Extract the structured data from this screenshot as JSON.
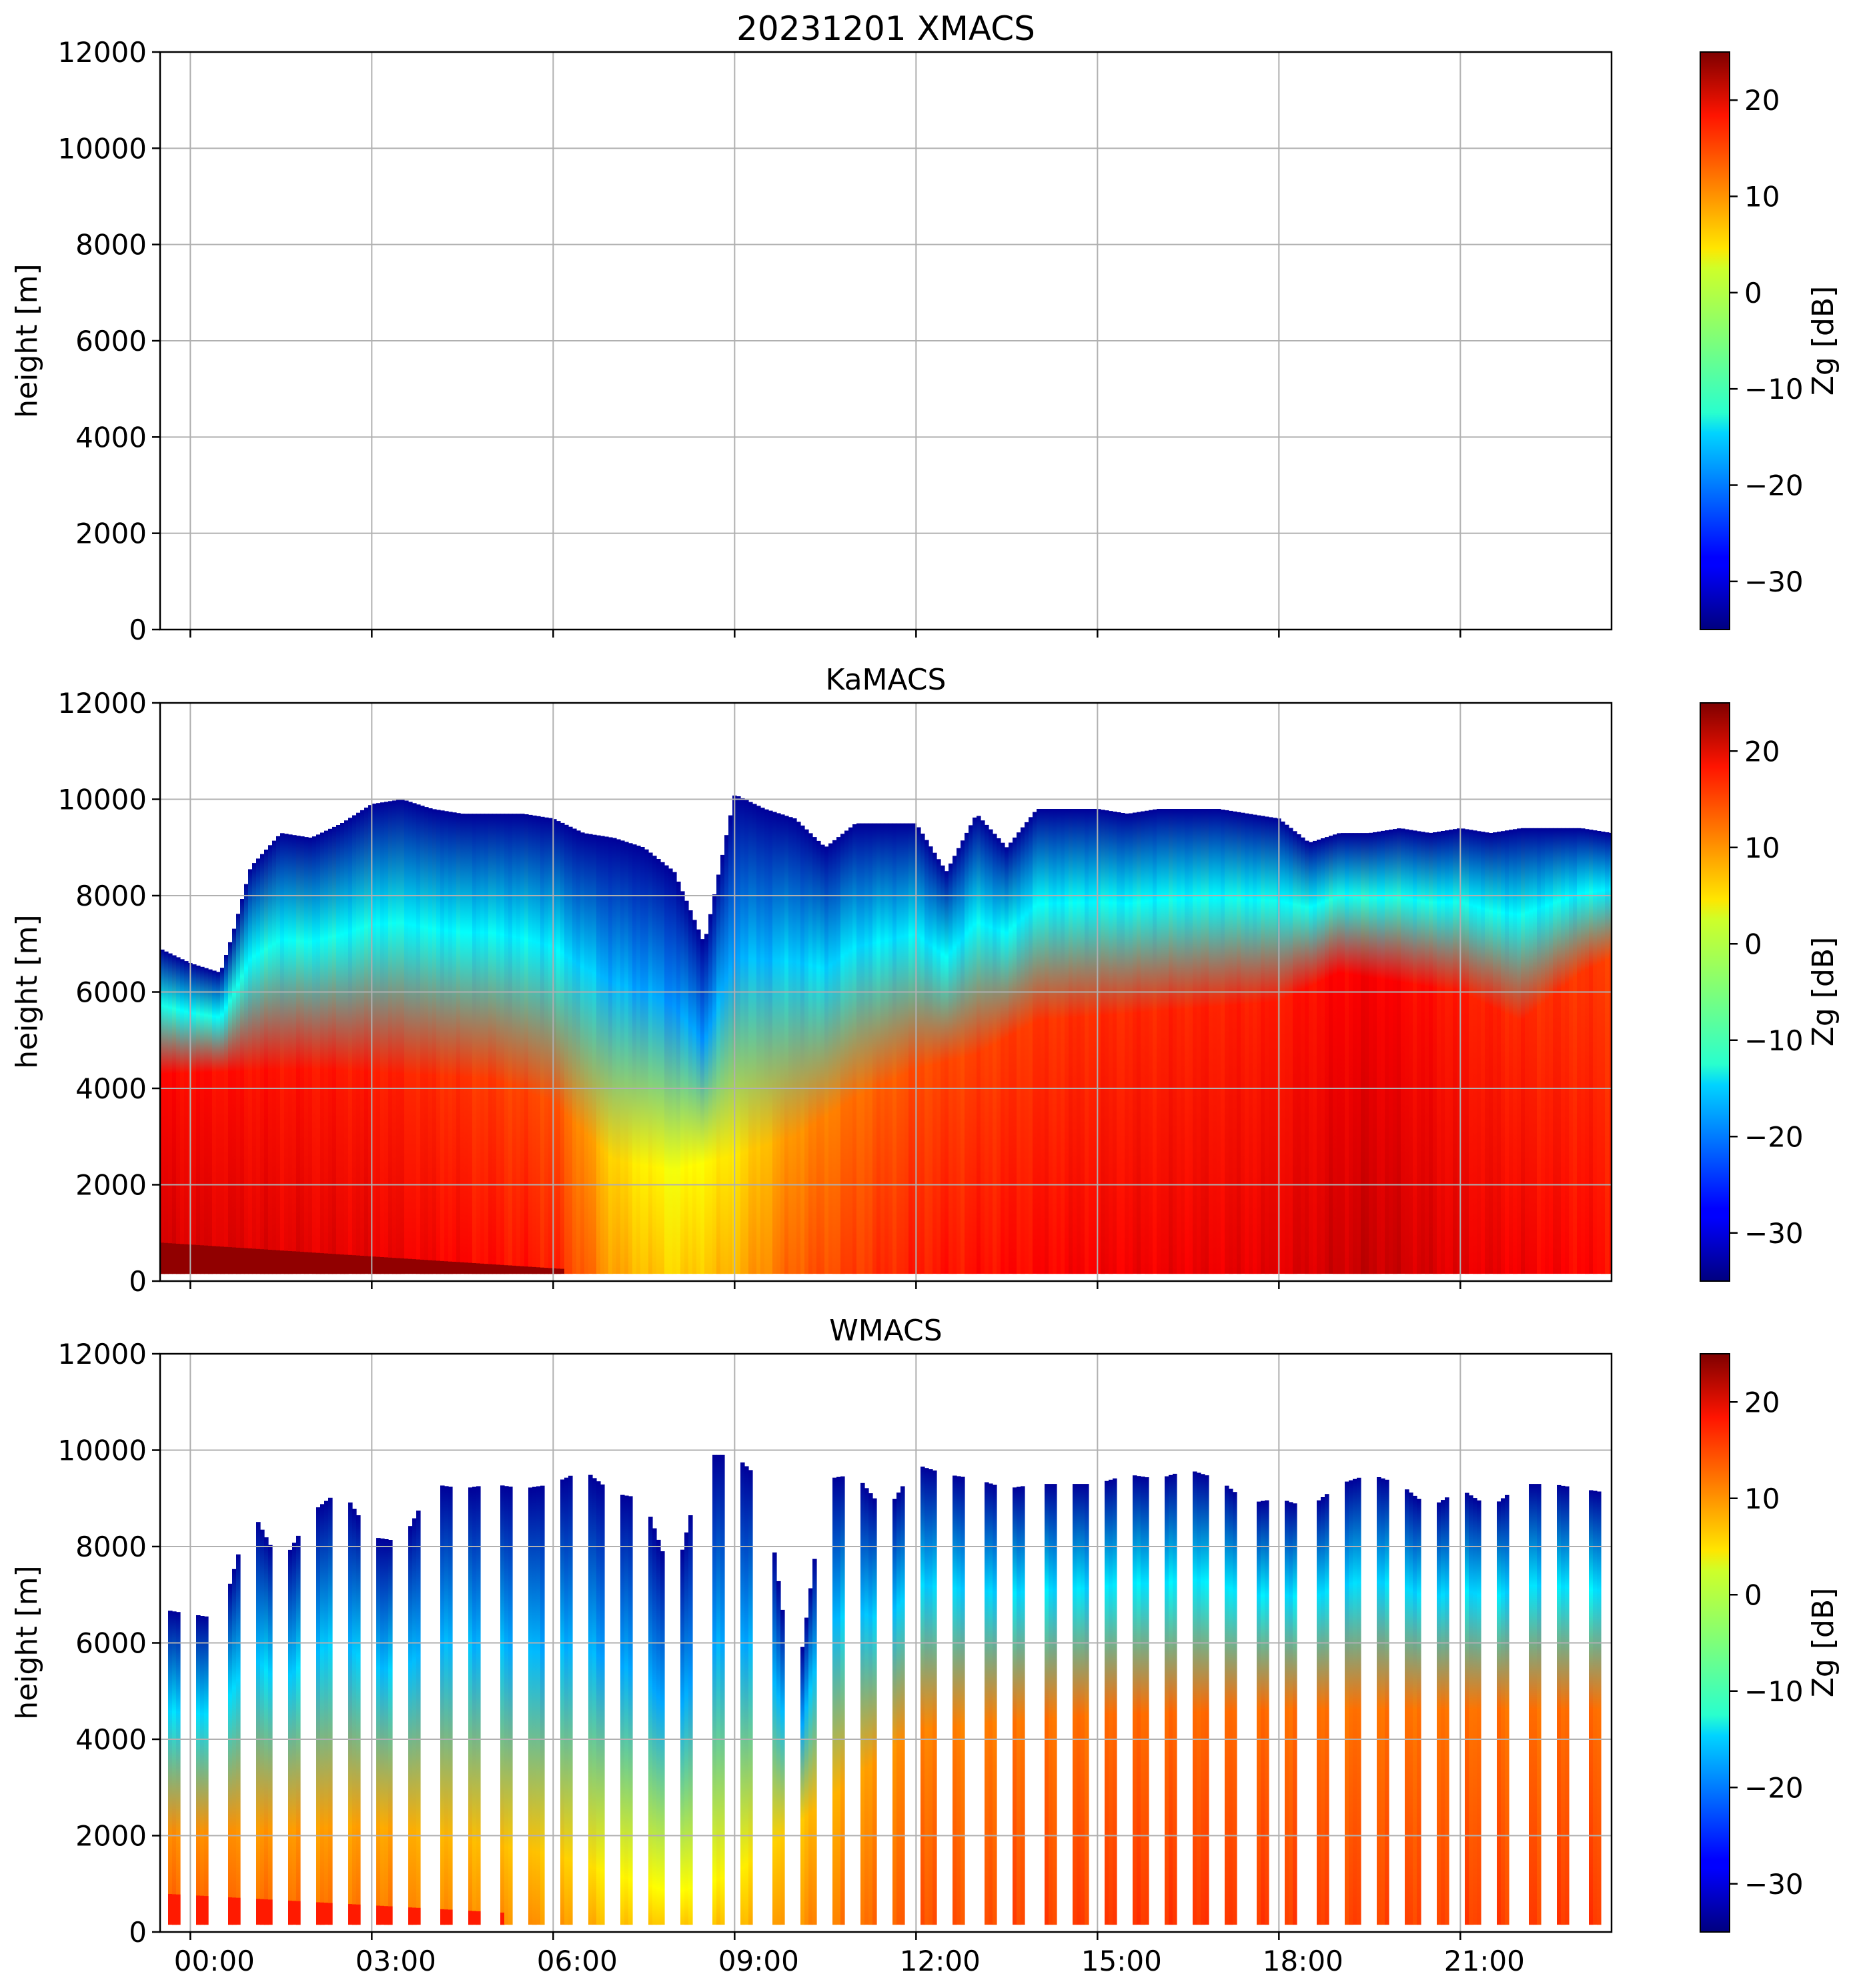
{
  "figure": {
    "date": "20231201",
    "units_note": "Zg [dB]"
  },
  "chart_data": [
    {
      "type": "heatmap",
      "title": "20231201 XMACS",
      "xlabel": "",
      "ylabel": "height [m]",
      "x_range_hours": [
        -0.5,
        23.5
      ],
      "ylim": [
        0,
        12000
      ],
      "yticks": [
        0,
        2000,
        4000,
        6000,
        8000,
        10000,
        12000
      ],
      "xticks": [
        "00:00",
        "03:00",
        "06:00",
        "09:00",
        "12:00",
        "15:00",
        "18:00",
        "21:00"
      ],
      "xtick_labels_shown": false,
      "grid": true,
      "colorbar": {
        "label": "Zg [dB]",
        "range": [
          -35,
          25
        ],
        "ticks": [
          20,
          10,
          0,
          -10,
          -20,
          -30
        ],
        "colormap": "jet"
      },
      "data_present": false,
      "cloud": null
    },
    {
      "type": "heatmap",
      "title": "KaMACS",
      "xlabel": "",
      "ylabel": "height [m]",
      "x_range_hours": [
        -0.5,
        23.5
      ],
      "ylim": [
        0,
        12000
      ],
      "yticks": [
        0,
        2000,
        4000,
        6000,
        8000,
        10000,
        12000
      ],
      "xticks": [
        "00:00",
        "03:00",
        "06:00",
        "09:00",
        "12:00",
        "15:00",
        "18:00",
        "21:00"
      ],
      "xtick_labels_shown": false,
      "grid": true,
      "colorbar": {
        "label": "Zg [dB]",
        "range": [
          -35,
          25
        ],
        "ticks": [
          20,
          10,
          0,
          -10,
          -20,
          -30
        ],
        "colormap": "jet"
      },
      "data_present": true,
      "cloud": {
        "mode": "continuous",
        "base_m": 150,
        "top_profile": {
          "hours": [
            -0.5,
            0,
            0.5,
            0.7,
            1,
            1.5,
            2,
            2.5,
            3,
            3.5,
            4,
            4.5,
            5,
            5.5,
            6,
            6.5,
            7,
            7.5,
            8,
            8.5,
            9,
            9.5,
            10,
            10.5,
            11,
            11.5,
            12,
            12.5,
            13,
            13.5,
            14,
            14.5,
            15,
            15.5,
            16,
            16.5,
            17,
            17.5,
            18,
            18.5,
            19,
            19.5,
            20,
            20.5,
            21,
            21.5,
            22,
            22.5,
            23,
            23.5
          ],
          "top_m": [
            6900,
            6600,
            6400,
            7200,
            8600,
            9300,
            9200,
            9500,
            9900,
            10000,
            9800,
            9700,
            9700,
            9700,
            9600,
            9300,
            9200,
            9000,
            8500,
            7000,
            10100,
            9800,
            9600,
            9000,
            9500,
            9500,
            9500,
            8500,
            9700,
            9000,
            9800,
            9800,
            9800,
            9700,
            9800,
            9800,
            9800,
            9700,
            9600,
            9100,
            9300,
            9300,
            9400,
            9300,
            9400,
            9300,
            9400,
            9400,
            9400,
            9300
          ]
        },
        "core_top_profile": {
          "hours": [
            -0.5,
            2,
            5,
            6,
            7,
            8,
            9,
            10,
            11,
            12,
            13,
            14,
            15,
            16,
            17,
            18,
            19,
            20,
            21,
            22,
            23,
            23.5
          ],
          "top_m": [
            4300,
            4400,
            4200,
            3700,
            2500,
            2300,
            2600,
            3000,
            3800,
            4400,
            4700,
            5400,
            5500,
            5600,
            5700,
            5800,
            6400,
            6200,
            6000,
            5400,
            6400,
            6700
          ]
        },
        "max_dbz_profile": {
          "hours": [
            -0.5,
            3,
            6,
            7,
            8,
            9,
            10,
            12,
            15,
            18,
            19.5,
            21,
            23.5
          ],
          "dbz": [
            20,
            19,
            16,
            8,
            5,
            7,
            12,
            16,
            18,
            19,
            21,
            19,
            17
          ]
        },
        "near_surface_band": {
          "hours": [
            -0.5,
            6.2
          ],
          "top_m_start": 800,
          "top_m_end": 250,
          "dbz": 24
        }
      }
    },
    {
      "type": "heatmap",
      "title": "WMACS",
      "xlabel": "",
      "ylabel": "height [m]",
      "x_range_hours": [
        -0.5,
        23.5
      ],
      "ylim": [
        0,
        12000
      ],
      "yticks": [
        0,
        2000,
        4000,
        6000,
        8000,
        10000,
        12000
      ],
      "xticks": [
        "00:00",
        "03:00",
        "06:00",
        "09:00",
        "12:00",
        "15:00",
        "18:00",
        "21:00"
      ],
      "xtick_labels_shown": true,
      "grid": true,
      "colorbar": {
        "label": "Zg [dB]",
        "range": [
          -35,
          25
        ],
        "ticks": [
          20,
          10,
          0,
          -10,
          -20,
          -30
        ],
        "colormap": "jet"
      },
      "data_present": true,
      "cloud": {
        "mode": "stripes",
        "base_m": 150,
        "stripe_period_h": 0.5,
        "stripe_width_h": 0.22,
        "stripe_start_h": -0.4,
        "top_profile": {
          "hours": [
            -0.5,
            0,
            0.5,
            1,
            1.5,
            2,
            2.5,
            3,
            3.5,
            4,
            4.5,
            5,
            5.5,
            6,
            6.5,
            7,
            7.5,
            8,
            8.5,
            9,
            9.5,
            10,
            10.5,
            11,
            11.5,
            12,
            12.5,
            13,
            13.5,
            14,
            14.5,
            15,
            15.5,
            16,
            16.5,
            17,
            17.5,
            18,
            18.5,
            19,
            19.5,
            20,
            20.5,
            21,
            21.5,
            22,
            22.5,
            23,
            23.5
          ],
          "top_m": [
            6700,
            6600,
            6500,
            8800,
            7600,
            8700,
            9200,
            8200,
            8100,
            9300,
            9200,
            9300,
            9200,
            9300,
            9600,
            9100,
            9000,
            7200,
            9900,
            9900,
            9300,
            4800,
            9400,
            9500,
            8700,
            9700,
            9500,
            9400,
            9200,
            9300,
            9300,
            9300,
            9500,
            9400,
            9600,
            9400,
            8900,
            9000,
            8800,
            9300,
            9500,
            9300,
            8800,
            9200,
            8800,
            9300,
            9300,
            9200,
            9100
          ]
        },
        "core_top_profile": {
          "hours": [
            -0.5,
            3,
            6,
            8,
            9,
            10,
            11,
            12,
            15,
            18,
            21,
            23.5
          ],
          "top_m": [
            2000,
            2200,
            1600,
            800,
            1200,
            2200,
            3200,
            4200,
            4500,
            4600,
            4600,
            4600
          ]
        },
        "max_dbz_profile": {
          "hours": [
            -0.5,
            3,
            6,
            7,
            8,
            9,
            10,
            12,
            15,
            18,
            21,
            23.5
          ],
          "dbz": [
            12,
            11,
            9,
            6,
            5,
            6,
            9,
            13,
            14,
            14,
            14,
            14
          ]
        },
        "near_surface_band": {
          "hours": [
            -0.5,
            5.2
          ],
          "top_m_start": 800,
          "top_m_end": 400,
          "dbz": 16
        }
      }
    }
  ]
}
